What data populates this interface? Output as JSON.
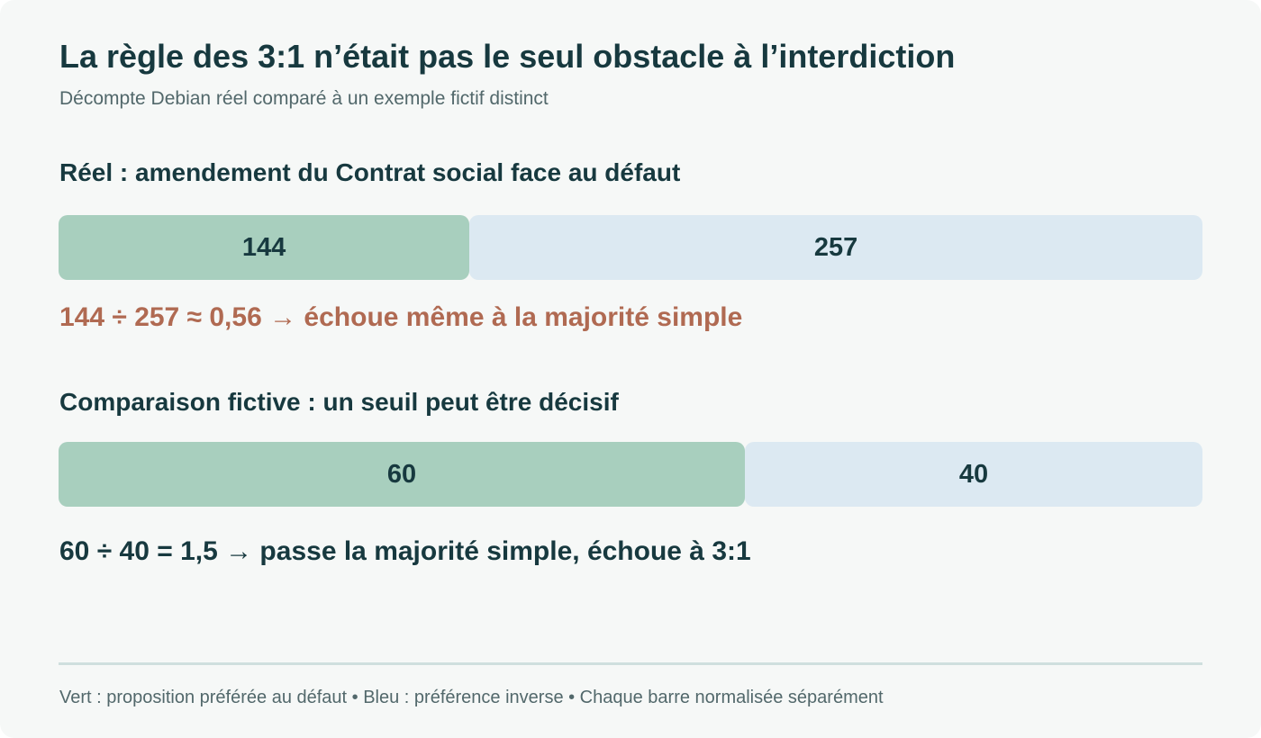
{
  "title": "La règle des 3:1 n’était pas le seul obstacle à l’interdiction",
  "subtitle": "Décompte Debian réel comparé à un exemple fictif distinct",
  "colors": {
    "green": "#a8cfbe",
    "blue": "#dce9f2",
    "text_dark": "#17393f",
    "note_real": "#b06a52",
    "note_fictive": "#17393f"
  },
  "chart_data": [
    {
      "type": "bar",
      "orientation": "horizontal-stacked-normalized",
      "heading": "Réel : amendement du Contrat social face au défaut",
      "series": [
        {
          "value": 144,
          "color": "#a8cfbe"
        },
        {
          "value": 257,
          "color": "#dce9f2"
        }
      ],
      "note": "144 ÷ 257 ≈ 0,56 → échoue même à la majorité simple"
    },
    {
      "type": "bar",
      "orientation": "horizontal-stacked-normalized",
      "heading": "Comparaison fictive : un seuil peut être décisif",
      "series": [
        {
          "value": 60,
          "color": "#a8cfbe"
        },
        {
          "value": 40,
          "color": "#dce9f2"
        }
      ],
      "note": "60 ÷ 40 = 1,5 → passe la majorité simple, échoue à 3:1"
    }
  ],
  "footer": "Vert : proposition préférée au défaut • Bleu : préférence inverse • Chaque barre normalisée séparément"
}
